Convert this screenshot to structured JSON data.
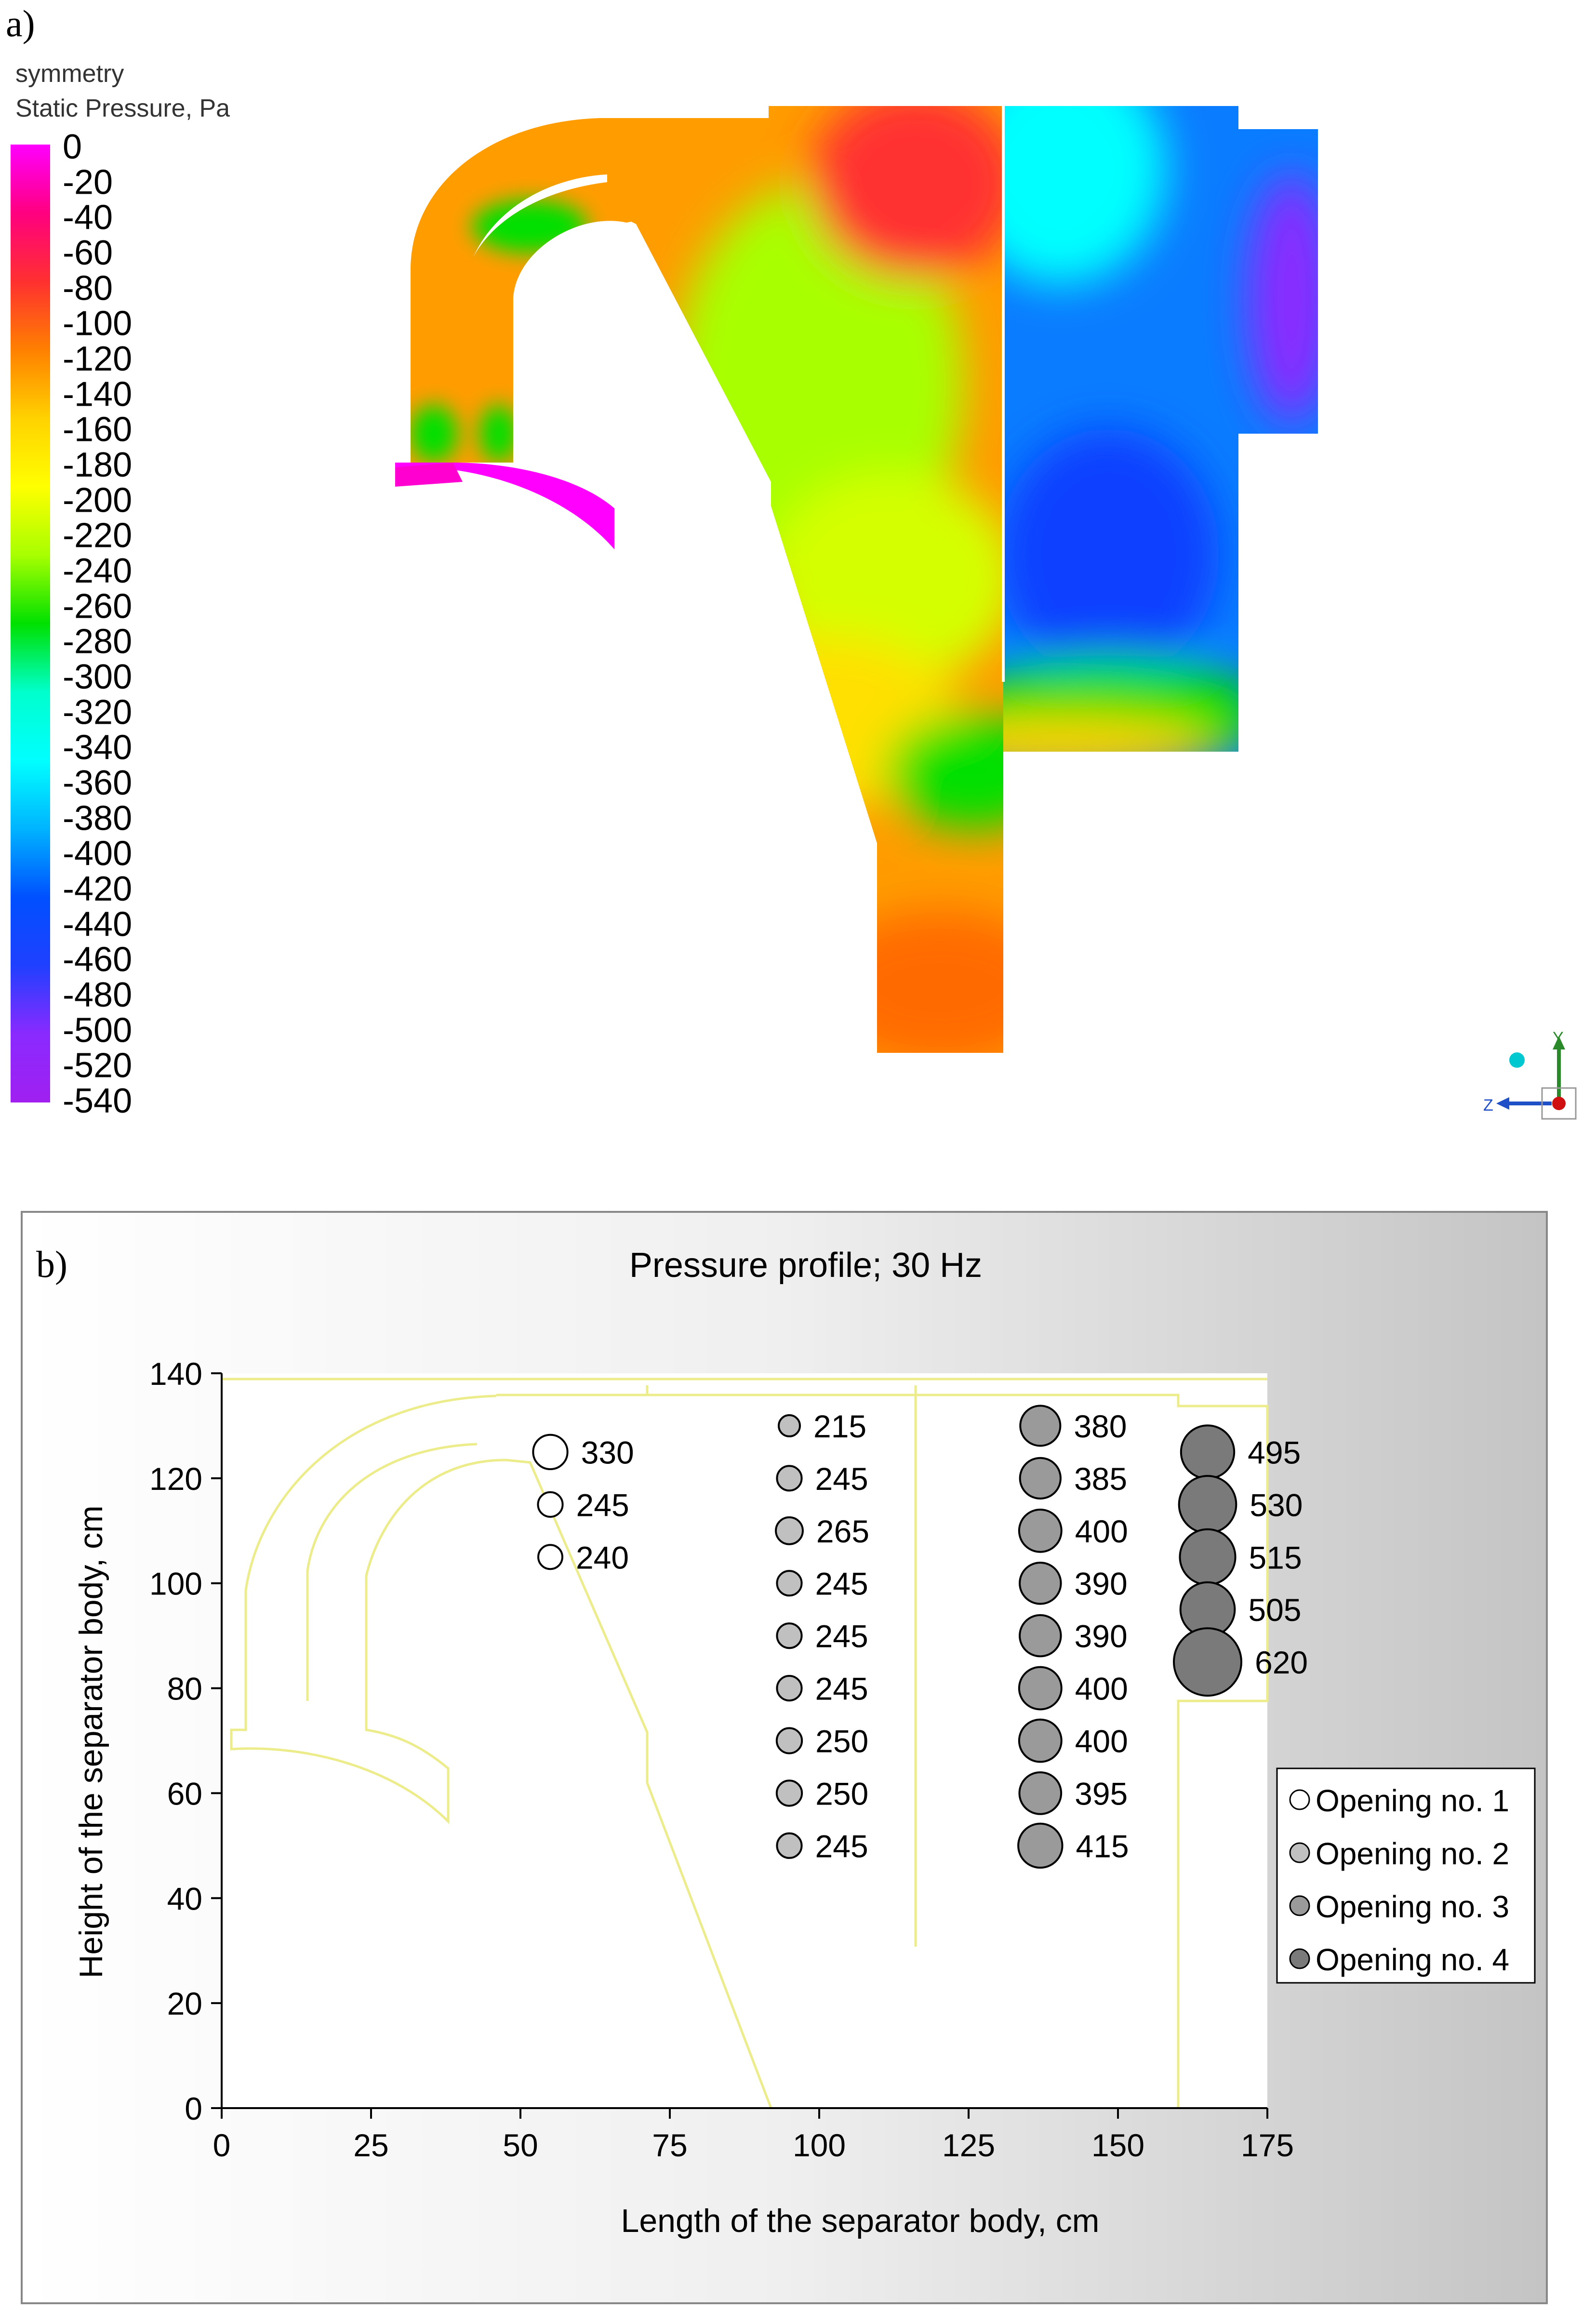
{
  "panel_a": {
    "label": "a)",
    "legend_line1": "symmetry",
    "legend_line2": "Static Pressure, Pa",
    "scale_ticks": [
      "0",
      "-20",
      "-40",
      "-60",
      "-80",
      "-100",
      "-120",
      "-140",
      "-160",
      "-180",
      "-200",
      "-220",
      "-240",
      "-260",
      "-280",
      "-300",
      "-320",
      "-340",
      "-360",
      "-380",
      "-400",
      "-420",
      "-440",
      "-460",
      "-480",
      "-500",
      "-520",
      "-540"
    ],
    "scale_colors": [
      "#ff00ff",
      "#ff0080",
      "#ff3030",
      "#ff8000",
      "#ffd200",
      "#ffff00",
      "#a8ff00",
      "#00e000",
      "#00ffcc",
      "#00ffff",
      "#00b4ff",
      "#0050ff",
      "#2040ff",
      "#8a2aff",
      "#a020f0"
    ],
    "axis_labels": {
      "y": "Y",
      "z": "Z"
    }
  },
  "chart_data": {
    "type": "scatter",
    "panel_label": "b)",
    "title": "Pressure profile; 30 Hz",
    "xlabel": "Length of the separator body, cm",
    "ylabel": "Height of the separator body, cm",
    "xlim": [
      0,
      175
    ],
    "ylim": [
      0,
      140
    ],
    "xticks": [
      "0",
      "25",
      "50",
      "75",
      "100",
      "125",
      "150",
      "175"
    ],
    "yticks": [
      "0",
      "20",
      "40",
      "60",
      "80",
      "100",
      "120",
      "140"
    ],
    "legend_position": "right",
    "series": [
      {
        "name": "Opening no. 1",
        "color": "#ffffff",
        "points": [
          {
            "x": 55,
            "y": 125,
            "value": 330
          },
          {
            "x": 55,
            "y": 115,
            "value": 245
          },
          {
            "x": 55,
            "y": 105,
            "value": 240
          }
        ]
      },
      {
        "name": "Opening no. 2",
        "color": "#c0c0c0",
        "points": [
          {
            "x": 95,
            "y": 130,
            "value": 215
          },
          {
            "x": 95,
            "y": 120,
            "value": 245
          },
          {
            "x": 95,
            "y": 110,
            "value": 265
          },
          {
            "x": 95,
            "y": 100,
            "value": 245
          },
          {
            "x": 95,
            "y": 90,
            "value": 245
          },
          {
            "x": 95,
            "y": 80,
            "value": 245
          },
          {
            "x": 95,
            "y": 70,
            "value": 250
          },
          {
            "x": 95,
            "y": 60,
            "value": 250
          },
          {
            "x": 95,
            "y": 50,
            "value": 245
          }
        ]
      },
      {
        "name": "Opening no. 3",
        "color": "#9a9a9a",
        "points": [
          {
            "x": 137,
            "y": 130,
            "value": 380
          },
          {
            "x": 137,
            "y": 120,
            "value": 385
          },
          {
            "x": 137,
            "y": 110,
            "value": 400
          },
          {
            "x": 137,
            "y": 100,
            "value": 390
          },
          {
            "x": 137,
            "y": 90,
            "value": 390
          },
          {
            "x": 137,
            "y": 80,
            "value": 400
          },
          {
            "x": 137,
            "y": 70,
            "value": 400
          },
          {
            "x": 137,
            "y": 60,
            "value": 395
          },
          {
            "x": 137,
            "y": 50,
            "value": 415
          }
        ]
      },
      {
        "name": "Opening no. 4",
        "color": "#7a7a7a",
        "points": [
          {
            "x": 165,
            "y": 125,
            "value": 495
          },
          {
            "x": 165,
            "y": 115,
            "value": 530
          },
          {
            "x": 165,
            "y": 105,
            "value": 515
          },
          {
            "x": 165,
            "y": 95,
            "value": 505
          },
          {
            "x": 165,
            "y": 85,
            "value": 620
          }
        ]
      }
    ]
  }
}
